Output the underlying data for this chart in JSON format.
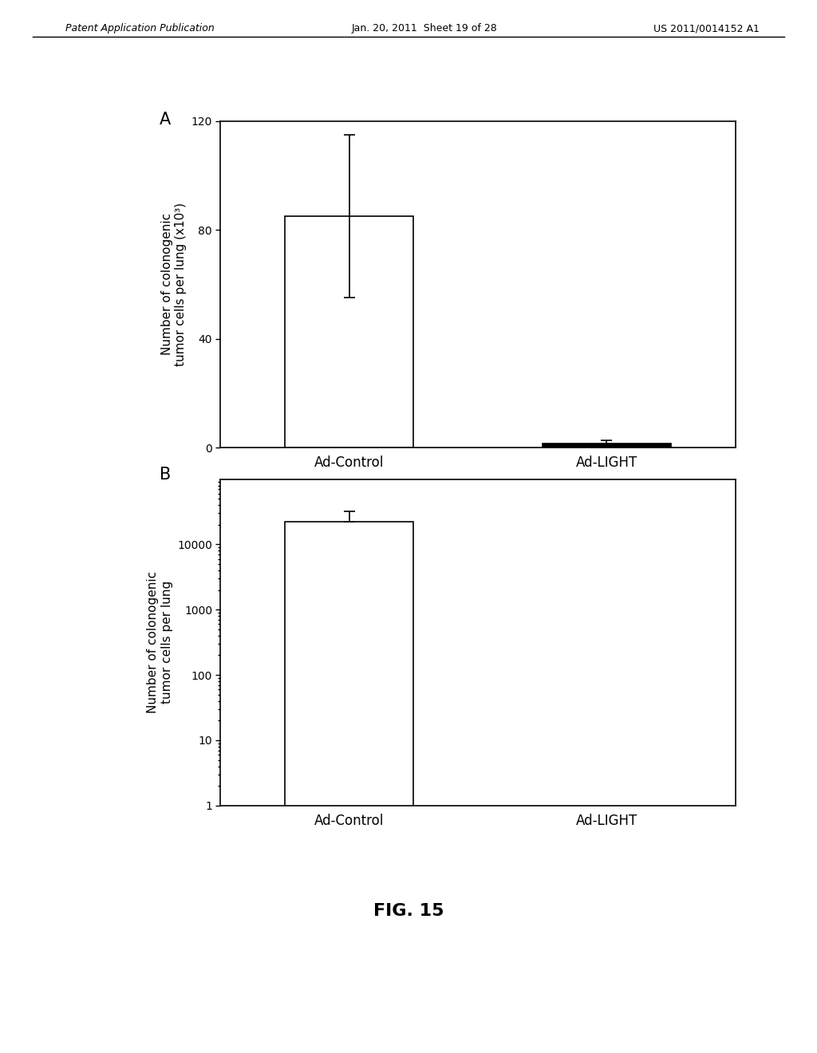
{
  "header_left": "Patent Application Publication",
  "header_mid": "Jan. 20, 2011  Sheet 19 of 28",
  "header_right": "US 2011/0014152 A1",
  "fig_label": "FIG. 15",
  "panel_A": {
    "label": "A",
    "categories": [
      "Ad-Control",
      "Ad-LIGHT"
    ],
    "values": [
      85,
      1.5
    ],
    "errors_up": [
      30,
      1.2
    ],
    "errors_down": [
      30,
      0
    ],
    "bar_colors": [
      "white",
      "black"
    ],
    "bar_edgecolors": [
      "black",
      "black"
    ],
    "ylabel": "Number of colonogenic\ntumor cells per lung (x10³)",
    "ylim": [
      0,
      120
    ],
    "yticks": [
      0,
      40,
      80,
      120
    ]
  },
  "panel_B": {
    "label": "B",
    "categories": [
      "Ad-Control",
      "Ad-LIGHT"
    ],
    "values": [
      22000,
      1
    ],
    "errors_up": [
      10000,
      0
    ],
    "bar_colors": [
      "white",
      "white"
    ],
    "bar_edgecolors": [
      "black",
      "black"
    ],
    "ylabel": "Number of colonogenic\ntumor cells per lung",
    "ylim": [
      1,
      100000
    ],
    "yticks": [
      1,
      10,
      100,
      1000,
      10000
    ]
  },
  "background_color": "#ffffff",
  "text_color": "#000000"
}
